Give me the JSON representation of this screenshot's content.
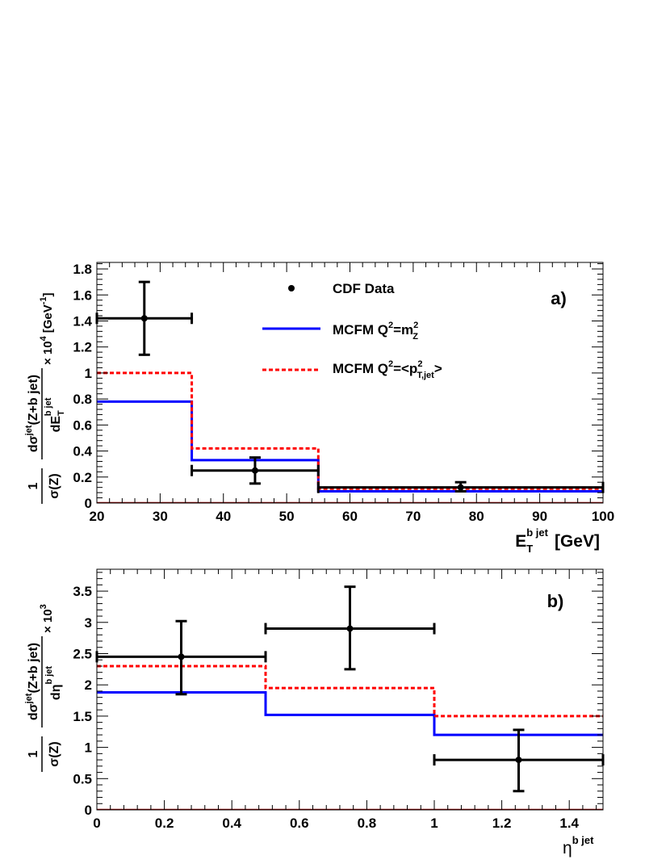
{
  "chart_data": [
    {
      "type": "line",
      "panel_label": "a)",
      "xlabel": {
        "main": "E",
        "sub": "T",
        "sup": "b jet",
        "unit": "[GeV]"
      },
      "ylabel": {
        "lead": "1",
        "lead_den": "σ(Z)",
        "num": "dσ",
        "num_sup": "jet",
        "num_rest": "(Z+b jet)",
        "den": "dE",
        "den_sub": "T",
        "den_sup": "b jet",
        "scale": "× 10",
        "scale_exp": "4",
        "unit": "[GeV",
        "unit_exp": "-1",
        "unit_close": "]"
      },
      "xlim": [
        20,
        100
      ],
      "ylim": [
        0,
        1.85
      ],
      "xticks": [
        20,
        30,
        40,
        50,
        60,
        70,
        80,
        90,
        100
      ],
      "yticks": [
        0,
        0.2,
        0.4,
        0.6,
        0.8,
        1,
        1.2,
        1.4,
        1.6,
        1.8
      ],
      "yticklabels": [
        "0",
        "0.2",
        "0.4",
        "0.6",
        "0.8",
        "1",
        "1.2",
        "1.4",
        "1.6",
        "1.8"
      ],
      "series": [
        {
          "name": "MCFM Q²=m²_Z",
          "style": "solid",
          "color": "#0000ff",
          "bins": [
            [
              20,
              35,
              0.78
            ],
            [
              35,
              55,
              0.33
            ],
            [
              55,
              100,
              0.09
            ]
          ]
        },
        {
          "name": "MCFM Q²=<p²_T,jet>",
          "style": "dashed",
          "color": "#ff0000",
          "bins": [
            [
              20,
              35,
              1.0
            ],
            [
              35,
              55,
              0.42
            ],
            [
              55,
              100,
              0.11
            ]
          ]
        }
      ],
      "data_points": {
        "name": "CDF Data",
        "color": "#000000",
        "points": [
          {
            "x": 27.5,
            "xlo": 20,
            "xhi": 35,
            "y": 1.42,
            "ylo": 1.14,
            "yhi": 1.7
          },
          {
            "x": 45,
            "xlo": 35,
            "xhi": 55,
            "y": 0.25,
            "ylo": 0.15,
            "yhi": 0.35
          },
          {
            "x": 77.5,
            "xlo": 55,
            "xhi": 100,
            "y": 0.12,
            "ylo": 0.09,
            "yhi": 0.16
          }
        ]
      },
      "legend": {
        "position": "top-center",
        "entries": [
          {
            "kind": "marker",
            "text": "CDF Data"
          },
          {
            "kind": "solid",
            "text": "MCFM  Q",
            "sup": "2",
            "mid": "=m",
            "sup2": "2",
            "sub2": "Z",
            "tail": ""
          },
          {
            "kind": "dashed",
            "text": "MCFM  Q",
            "sup": "2",
            "mid": "=<p",
            "sup2": "2",
            "sub2": "T,jet",
            "tail": ">"
          }
        ]
      }
    },
    {
      "type": "line",
      "panel_label": "b)",
      "xlabel": {
        "main": "η",
        "sup": "b jet"
      },
      "ylabel": {
        "lead": "1",
        "lead_den": "σ(Z)",
        "num": "dσ",
        "num_sup": "jet",
        "num_rest": "(Z+b jet)",
        "den": "dη",
        "den_sup": "b jet",
        "scale": "× 10",
        "scale_exp": "3"
      },
      "xlim": [
        0,
        1.5
      ],
      "ylim": [
        0,
        3.85
      ],
      "xticks": [
        0,
        0.2,
        0.4,
        0.6,
        0.8,
        1,
        1.2,
        1.4
      ],
      "xticklabels": [
        "0",
        "0.2",
        "0.4",
        "0.6",
        "0.8",
        "1",
        "1.2",
        "1.4"
      ],
      "yticks": [
        0,
        0.5,
        1,
        1.5,
        2,
        2.5,
        3,
        3.5
      ],
      "yticklabels": [
        "0",
        "0.5",
        "1",
        "1.5",
        "2",
        "2.5",
        "3",
        "3.5"
      ],
      "series": [
        {
          "name": "MCFM Q²=m²_Z",
          "style": "solid",
          "color": "#0000ff",
          "bins": [
            [
              0,
              0.5,
              1.88
            ],
            [
              0.5,
              1.0,
              1.52
            ],
            [
              1.0,
              1.5,
              1.2
            ]
          ]
        },
        {
          "name": "MCFM Q²=<p²_T,jet>",
          "style": "dashed",
          "color": "#ff0000",
          "bins": [
            [
              0,
              0.5,
              2.3
            ],
            [
              0.5,
              1.0,
              1.95
            ],
            [
              1.0,
              1.5,
              1.5
            ]
          ]
        }
      ],
      "data_points": {
        "name": "CDF Data",
        "color": "#000000",
        "points": [
          {
            "x": 0.25,
            "xlo": 0,
            "xhi": 0.5,
            "y": 2.45,
            "ylo": 1.85,
            "yhi": 3.02
          },
          {
            "x": 0.75,
            "xlo": 0.5,
            "xhi": 1.0,
            "y": 2.9,
            "ylo": 2.25,
            "yhi": 3.57
          },
          {
            "x": 1.25,
            "xlo": 1.0,
            "xhi": 1.5,
            "y": 0.8,
            "ylo": 0.3,
            "yhi": 1.28
          }
        ]
      }
    }
  ]
}
